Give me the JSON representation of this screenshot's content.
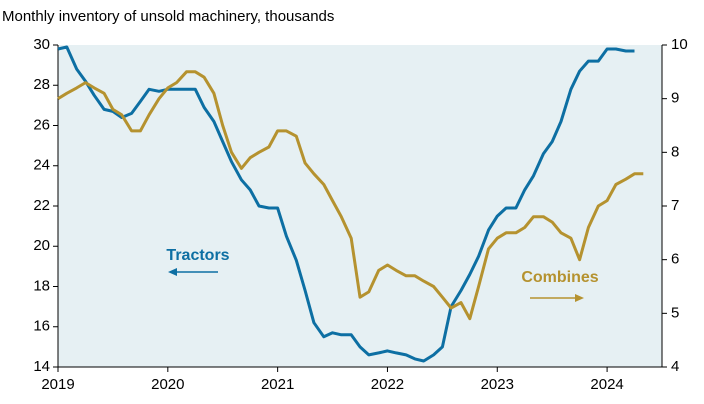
{
  "chart_data": {
    "type": "line",
    "subtitle": "Monthly inventory of unsold machinery, thousands",
    "x": [
      2019,
      2019.08,
      2019.17,
      2019.25,
      2019.33,
      2019.42,
      2019.5,
      2019.58,
      2019.67,
      2019.75,
      2019.83,
      2019.92,
      2020,
      2020.08,
      2020.17,
      2020.25,
      2020.33,
      2020.42,
      2020.5,
      2020.58,
      2020.67,
      2020.75,
      2020.83,
      2020.92,
      2021,
      2021.08,
      2021.17,
      2021.25,
      2021.33,
      2021.42,
      2021.5,
      2021.58,
      2021.67,
      2021.75,
      2021.83,
      2021.92,
      2022,
      2022.08,
      2022.17,
      2022.25,
      2022.33,
      2022.42,
      2022.5,
      2022.58,
      2022.67,
      2022.75,
      2022.83,
      2022.92,
      2023,
      2023.08,
      2023.17,
      2023.25,
      2023.33,
      2023.42,
      2023.5,
      2023.58,
      2023.67,
      2023.75,
      2023.83,
      2023.92,
      2024,
      2024.08,
      2024.17,
      2024.25,
      2024.33
    ],
    "series": [
      {
        "name": "Tractors",
        "color": "#0d6fa3",
        "axis": "y",
        "values": [
          29.8,
          29.9,
          28.8,
          28.2,
          27.5,
          26.8,
          26.7,
          26.4,
          26.6,
          27.2,
          27.8,
          27.7,
          27.8,
          27.8,
          27.8,
          27.8,
          26.9,
          26.2,
          25.2,
          24.2,
          23.3,
          22.8,
          22.0,
          21.9,
          21.9,
          20.5,
          19.3,
          17.8,
          16.2,
          15.5,
          15.7,
          15.6,
          15.6,
          15.0,
          14.6,
          14.7,
          14.8,
          14.7,
          14.6,
          14.4,
          14.3,
          14.6,
          15.0,
          17.0,
          17.8,
          18.6,
          19.5,
          20.8,
          21.5,
          21.9,
          21.9,
          22.8,
          23.5,
          24.6,
          25.2,
          26.2,
          27.8,
          28.7,
          29.2,
          29.2,
          29.8,
          29.8,
          29.7,
          29.7,
          null
        ]
      },
      {
        "name": "Combines",
        "color": "#b5922f",
        "axis": "y2",
        "values": [
          9.0,
          9.1,
          9.2,
          9.3,
          9.2,
          9.1,
          8.8,
          8.7,
          8.4,
          8.4,
          8.7,
          9.0,
          9.2,
          9.3,
          9.5,
          9.5,
          9.4,
          9.1,
          8.5,
          8.0,
          7.7,
          7.9,
          8.0,
          8.1,
          8.4,
          8.4,
          8.3,
          7.8,
          7.6,
          7.4,
          7.1,
          6.8,
          6.4,
          5.3,
          5.4,
          5.8,
          5.9,
          5.8,
          5.7,
          5.7,
          5.6,
          5.5,
          5.3,
          5.1,
          5.2,
          4.9,
          5.5,
          6.2,
          6.4,
          6.5,
          6.5,
          6.6,
          6.8,
          6.8,
          6.7,
          6.5,
          6.4,
          6.0,
          6.6,
          7.0,
          7.1,
          7.4,
          7.5,
          7.6,
          7.6
        ]
      }
    ],
    "xlim": [
      2019,
      2024.5
    ],
    "xticks": [
      2019,
      2020,
      2021,
      2022,
      2023,
      2024
    ],
    "ylim": [
      14,
      30
    ],
    "yticks": [
      14,
      16,
      18,
      20,
      22,
      24,
      26,
      28,
      30
    ],
    "y2lim": [
      4,
      10
    ],
    "y2ticks": [
      4,
      5,
      6,
      7,
      8,
      9,
      10
    ]
  }
}
